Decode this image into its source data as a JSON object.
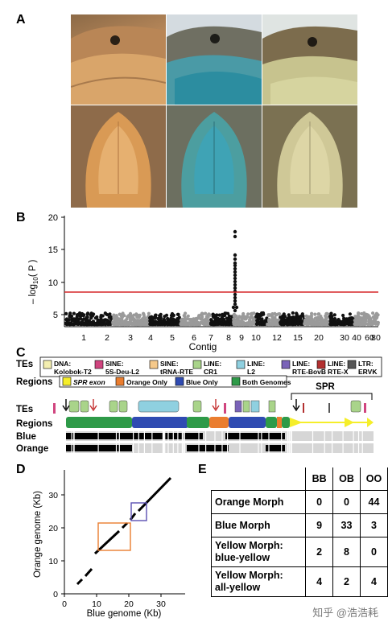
{
  "panels": {
    "a": "A",
    "b": "B",
    "c": "C",
    "d": "D",
    "e": "E"
  },
  "panel_b": {
    "ylabel": "– log",
    "ylabel_sub": "10",
    "ylabel_tail": "( P )",
    "xlabel": "Contig",
    "y_ticks": [
      "5",
      "10",
      "15",
      "20"
    ],
    "x_ticks": [
      "1",
      "2",
      "3",
      "4",
      "5",
      "6",
      "7",
      "8",
      "9",
      "10",
      "12",
      "15",
      "20",
      "30",
      "40",
      "60",
      "80"
    ],
    "threshold_color": "#d62728"
  },
  "panel_c": {
    "tes_label": "TEs",
    "regions_label": "Regions",
    "blue_label": "Blue",
    "orange_label": "Orange",
    "spr_label": "SPR",
    "te_legend": [
      {
        "class": "DNA:",
        "name": "Kolobok-T2",
        "color": "#f3eeb0"
      },
      {
        "class": "SINE:",
        "name": "5S-Deu-L2",
        "color": "#d0457f"
      },
      {
        "class": "SINE:",
        "name": "tRNA-RTE",
        "color": "#f6c98a"
      },
      {
        "class": "LINE:",
        "name": "CR1",
        "color": "#a9d48a"
      },
      {
        "class": "LINE:",
        "name": "L2",
        "color": "#8fd0e0"
      },
      {
        "class": "LINE:",
        "name": "RTE-BovB",
        "color": "#7a63b8"
      },
      {
        "class": "LINE:",
        "name": "RTE-X",
        "color": "#b33030"
      },
      {
        "class": "LTR:",
        "name": "ERVK",
        "color": "#555555"
      }
    ],
    "region_legend": [
      {
        "name": "SPR exon",
        "color": "#f5ee2a"
      },
      {
        "name": "Orange Only",
        "color": "#ea7d2f"
      },
      {
        "name": "Blue Only",
        "color": "#2f4bb2"
      },
      {
        "name": "Both Genomes",
        "color": "#2e9a48"
      }
    ]
  },
  "panel_d": {
    "xlabel": "Blue genome (Kb)",
    "ylabel": "Orange genome (Kb)",
    "x_ticks": [
      "0",
      "10",
      "20",
      "30"
    ],
    "y_ticks": [
      "0",
      "10",
      "20",
      "30"
    ]
  },
  "panel_e": {
    "columns": [
      "BB",
      "OB",
      "OO"
    ],
    "rows": [
      {
        "label1": "Orange Morph",
        "label2": "",
        "values": [
          "0",
          "0",
          "44"
        ]
      },
      {
        "label1": "Blue Morph",
        "label2": "",
        "values": [
          "9",
          "33",
          "3"
        ]
      },
      {
        "label1": "Yellow Morph:",
        "label2": "blue-yellow",
        "values": [
          "2",
          "8",
          "0"
        ]
      },
      {
        "label1": "Yellow Morph:",
        "label2": "all-yellow",
        "values": [
          "4",
          "2",
          "4"
        ]
      }
    ]
  },
  "watermark": "知乎 @浩浩耗"
}
